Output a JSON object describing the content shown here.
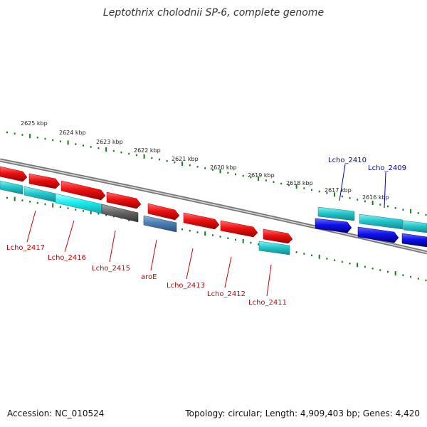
{
  "title": "Leptothrix cholodnii SP-6, complete genome",
  "footer": {
    "accession": "Accession: NC_010524",
    "summary": "Topology: circular; Length: 4,909,403 bp; Genes: 4,420"
  },
  "colors": {
    "backbone": "#8a8a8a",
    "tick": "#1a7a1a",
    "red_gene": "#ee1111",
    "cyan_gene": "#22c8cc",
    "blue_gene": "#1010ee",
    "gray_gene": "#666666",
    "steel_gene": "#4a7fb5",
    "label_red": "#cc0000",
    "label_blue": "#0000bb"
  },
  "kbp_labels": [
    "2625 kbp",
    "2624 kbp",
    "2623 kbp",
    "2622 kbp",
    "2621 kbp",
    "2620 kbp",
    "2619 kbp",
    "2618 kbp",
    "2617 kbp",
    "2616 kbp"
  ],
  "genes_bottom": [
    "Lcho_2417",
    "Lcho_2416",
    "Lcho_2415",
    "aroE",
    "Lcho_2413",
    "Lcho_2412",
    "Lcho_2411"
  ],
  "genes_top": [
    "Lcho_2410",
    "Lcho_2409"
  ]
}
